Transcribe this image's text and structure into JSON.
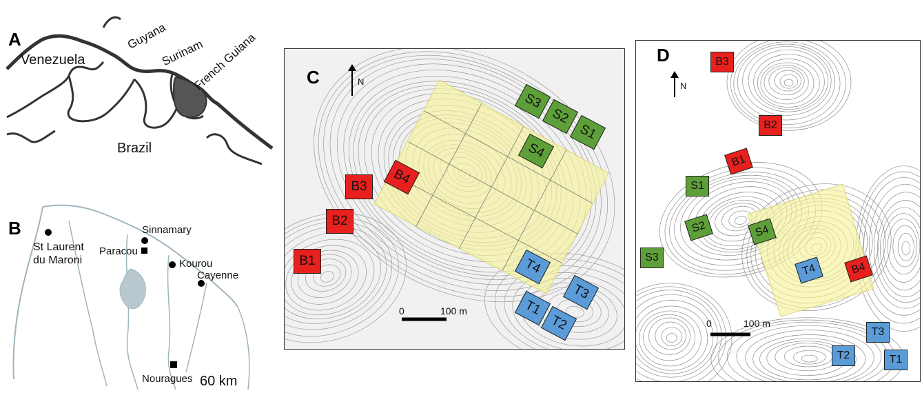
{
  "panels": {
    "a": {
      "letter": "A",
      "countries": [
        "Venezuela",
        "Guyana",
        "Surinam",
        "French Guiana",
        "Brazil"
      ]
    },
    "b": {
      "letter": "B",
      "towns": [
        "St Laurent",
        "du Maroni",
        "Sinnamary",
        "Paracou",
        "Kourou",
        "Cayenne",
        "Nouragues"
      ],
      "scale": "60 km"
    },
    "c": {
      "letter": "C",
      "north": "N",
      "scale_start": "0",
      "scale_end": "100 m",
      "plots": [
        "S3",
        "S2",
        "S1",
        "S4",
        "B3",
        "B4",
        "B2",
        "B1",
        "T4",
        "T3",
        "T1",
        "T2"
      ]
    },
    "d": {
      "letter": "D",
      "north": "N",
      "scale_start": "0",
      "scale_end": "100 m",
      "plots": [
        "B3",
        "B2",
        "B1",
        "S1",
        "S2",
        "S4",
        "S3",
        "T4",
        "B4",
        "T3",
        "T2",
        "T1"
      ]
    }
  },
  "colors": {
    "red_plot": "#e8201e",
    "green_plot": "#5e9f3a",
    "blue_plot": "#5b9bd8",
    "yellow_zone": "#f6f39a",
    "french_guiana": "#555555",
    "river": "#8fa9b5"
  }
}
